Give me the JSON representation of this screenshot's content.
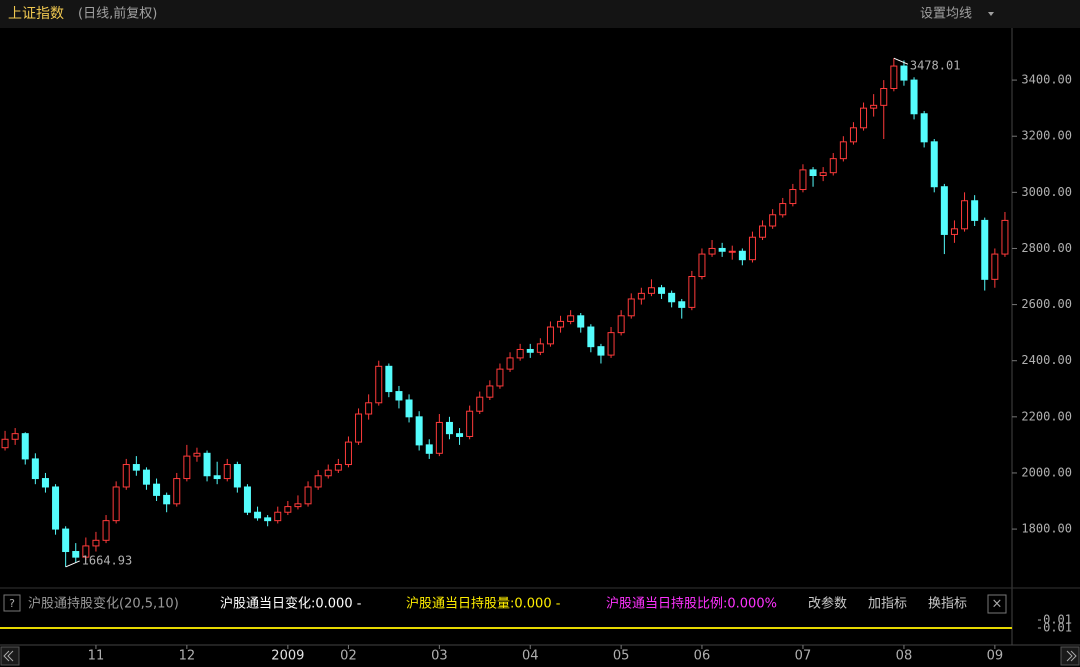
{
  "chart_data": {
    "type": "candlestick",
    "title": "上证指数",
    "subtitle": "(日线,前复权)",
    "categories": [
      "",
      null,
      null,
      null,
      null,
      null,
      null,
      null,
      null,
      "11",
      null,
      null,
      null,
      null,
      null,
      null,
      null,
      null,
      "12",
      null,
      null,
      null,
      null,
      null,
      null,
      null,
      null,
      null,
      "2009",
      null,
      null,
      null,
      null,
      null,
      "02",
      null,
      null,
      null,
      null,
      null,
      null,
      null,
      null,
      "03",
      null,
      null,
      null,
      null,
      null,
      null,
      null,
      null,
      "04",
      null,
      null,
      null,
      null,
      null,
      null,
      null,
      null,
      "05",
      null,
      null,
      null,
      null,
      null,
      null,
      null,
      "06",
      null,
      null,
      null,
      null,
      null,
      null,
      null,
      null,
      null,
      "07",
      null,
      null,
      null,
      null,
      null,
      null,
      null,
      null,
      null,
      "08",
      null,
      null,
      null,
      null,
      null,
      null,
      null,
      null,
      "09",
      null
    ],
    "open": [
      2090,
      2120,
      2140,
      2050,
      1980,
      1950,
      1800,
      1720,
      1700,
      1740,
      1760,
      1830,
      1950,
      2030,
      2010,
      1960,
      1920,
      1890,
      1980,
      2060,
      2070,
      1990,
      1980,
      2030,
      1950,
      1860,
      1840,
      1830,
      1860,
      1880,
      1890,
      1950,
      1990,
      2010,
      2030,
      2110,
      2210,
      2250,
      2380,
      2290,
      2260,
      2200,
      2100,
      2070,
      2180,
      2140,
      2130,
      2220,
      2270,
      2310,
      2370,
      2410,
      2440,
      2430,
      2460,
      2520,
      2540,
      2560,
      2520,
      2450,
      2420,
      2500,
      2560,
      2620,
      2640,
      2660,
      2640,
      2610,
      2590,
      2700,
      2780,
      2800,
      2790,
      2790,
      2760,
      2840,
      2880,
      2920,
      2960,
      3010,
      3080,
      3060,
      3070,
      3120,
      3180,
      3230,
      3300,
      3310,
      3370,
      3450,
      3400,
      3280,
      3180,
      3020,
      2850,
      2870,
      2970,
      2900,
      2690,
      2780
    ],
    "high": [
      2150,
      2160,
      2145,
      2070,
      2000,
      1960,
      1810,
      1750,
      1770,
      1790,
      1850,
      1970,
      2050,
      2060,
      2020,
      1980,
      1930,
      2000,
      2100,
      2090,
      2080,
      2040,
      2050,
      2040,
      1960,
      1880,
      1850,
      1880,
      1900,
      1920,
      1970,
      2010,
      2030,
      2050,
      2130,
      2230,
      2280,
      2400,
      2390,
      2310,
      2280,
      2220,
      2120,
      2210,
      2200,
      2160,
      2240,
      2290,
      2330,
      2390,
      2430,
      2460,
      2460,
      2480,
      2540,
      2560,
      2580,
      2570,
      2530,
      2460,
      2520,
      2580,
      2640,
      2660,
      2690,
      2670,
      2650,
      2620,
      2720,
      2800,
      2830,
      2820,
      2810,
      2800,
      2860,
      2900,
      2940,
      2980,
      3030,
      3100,
      3090,
      3090,
      3140,
      3200,
      3250,
      3320,
      3350,
      3400,
      3478.01,
      3470,
      3410,
      3290,
      3190,
      3030,
      2900,
      3000,
      2990,
      2910,
      2800,
      2930
    ],
    "low": [
      2080,
      2100,
      2030,
      1960,
      1930,
      1780,
      1664.93,
      1680,
      1690,
      1720,
      1750,
      1820,
      1940,
      1990,
      1940,
      1900,
      1860,
      1880,
      1970,
      2040,
      1970,
      1960,
      1970,
      1930,
      1850,
      1830,
      1810,
      1820,
      1850,
      1870,
      1880,
      1940,
      1980,
      2000,
      2020,
      2100,
      2190,
      2240,
      2270,
      2230,
      2180,
      2080,
      2050,
      2060,
      2120,
      2100,
      2120,
      2210,
      2260,
      2300,
      2360,
      2400,
      2410,
      2420,
      2450,
      2500,
      2530,
      2500,
      2430,
      2390,
      2410,
      2490,
      2550,
      2600,
      2630,
      2620,
      2590,
      2550,
      2580,
      2690,
      2770,
      2770,
      2760,
      2740,
      2750,
      2830,
      2870,
      2910,
      2950,
      3000,
      3020,
      3040,
      3060,
      3110,
      3170,
      3220,
      3270,
      3190,
      3360,
      3380,
      3260,
      3160,
      3000,
      2780,
      2820,
      2860,
      2880,
      2650,
      2660,
      2770
    ],
    "close": [
      2120,
      2140,
      2050,
      1980,
      1950,
      1800,
      1720,
      1700,
      1740,
      1760,
      1830,
      1950,
      2030,
      2010,
      1960,
      1920,
      1890,
      1980,
      2060,
      2070,
      1990,
      1980,
      2030,
      1950,
      1860,
      1840,
      1830,
      1860,
      1880,
      1890,
      1950,
      1990,
      2010,
      2030,
      2110,
      2210,
      2250,
      2380,
      2290,
      2260,
      2200,
      2100,
      2070,
      2180,
      2140,
      2130,
      2220,
      2270,
      2310,
      2370,
      2410,
      2440,
      2430,
      2460,
      2520,
      2540,
      2560,
      2520,
      2450,
      2420,
      2500,
      2560,
      2620,
      2640,
      2660,
      2640,
      2610,
      2590,
      2700,
      2780,
      2800,
      2790,
      2790,
      2760,
      2840,
      2880,
      2920,
      2960,
      3010,
      3080,
      3060,
      3070,
      3120,
      3180,
      3230,
      3300,
      3310,
      3370,
      3450,
      3400,
      3280,
      3180,
      3020,
      2850,
      2870,
      2970,
      2900,
      2690,
      2780,
      2900
    ],
    "up_color": "#ff3b3b",
    "down_color": "#54fcfc",
    "max_label": "3478.01",
    "min_label": "1664.93",
    "ylim": [
      1590,
      3607
    ],
    "yticks": [
      {
        "value": 1800,
        "label": "1800.00"
      },
      {
        "value": 2000,
        "label": "2000.00"
      },
      {
        "value": 2200,
        "label": "2200.00"
      },
      {
        "value": 2400,
        "label": "2400.00"
      },
      {
        "value": 2600,
        "label": "2600.00"
      },
      {
        "value": 2800,
        "label": "2800.00"
      },
      {
        "value": 3000,
        "label": "3000.00"
      },
      {
        "value": 3200,
        "label": "3200.00"
      },
      {
        "value": 3400,
        "label": "3400.00"
      }
    ],
    "grid": false
  },
  "header": {
    "ma_setting": "设置均线"
  },
  "indicator": {
    "help": "?",
    "name": "沪股通持股变化(20,5,10)",
    "item1": "沪股通当日变化:0.000 -",
    "item2": "沪股通当日持股量:0.000 -",
    "item3": "沪股通当日持股比例:0.000%",
    "buttons": [
      "改参数",
      "加指标",
      "换指标"
    ],
    "close": "×",
    "scale_labels": [
      "-0.01",
      "-0.01"
    ]
  }
}
